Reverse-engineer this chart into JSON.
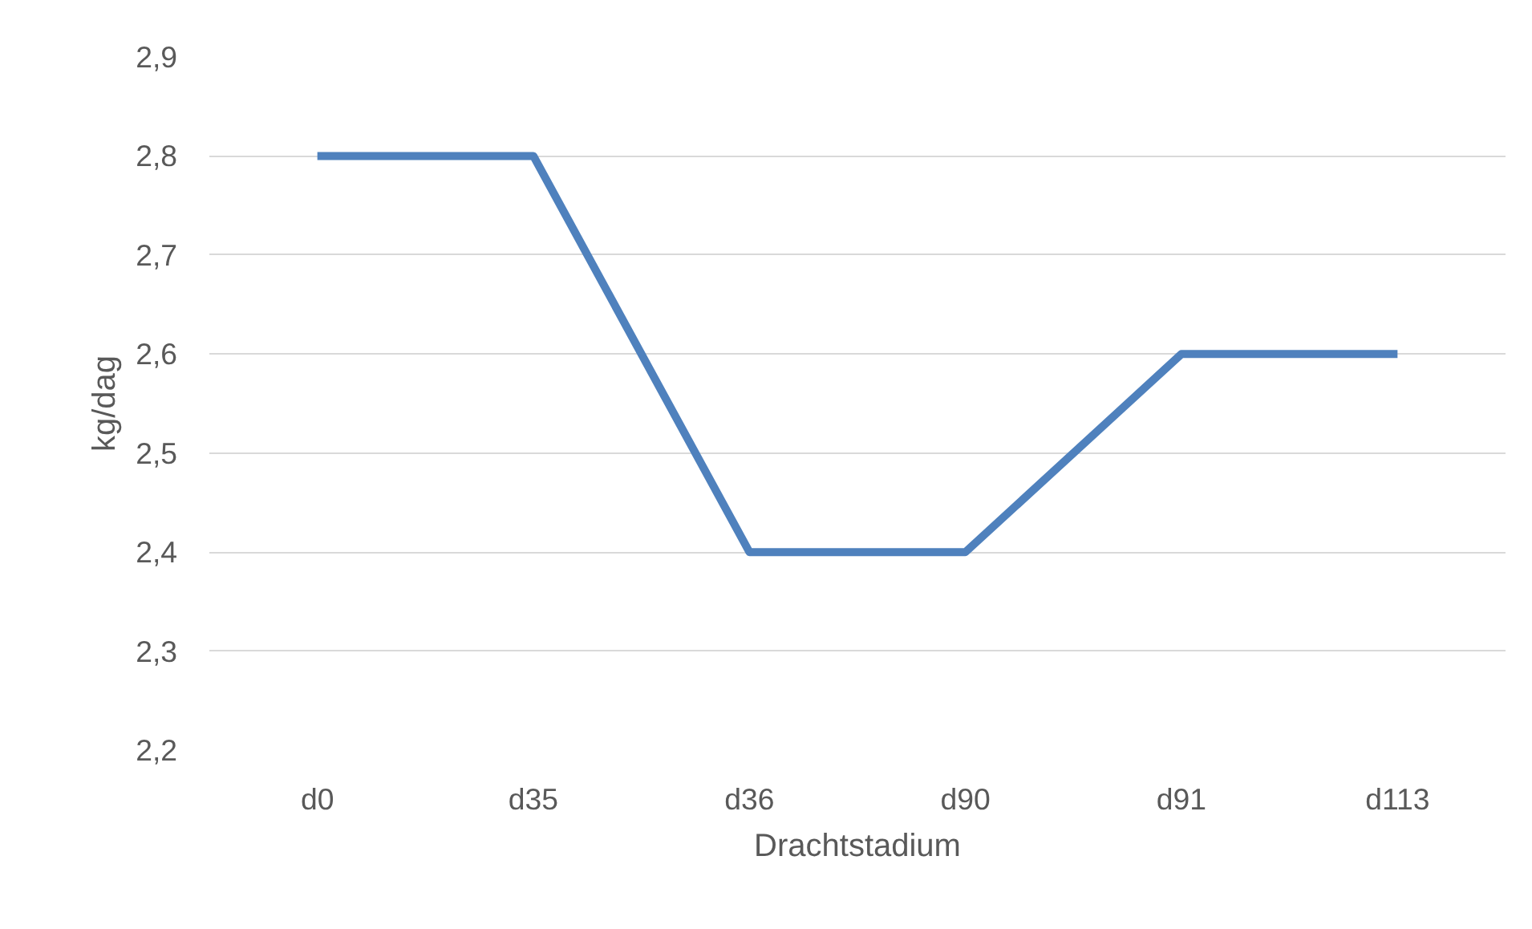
{
  "chart_data": {
    "type": "line",
    "xlabel": "Drachtstadium",
    "ylabel": "kg/dag",
    "categories": [
      "d0",
      "d35",
      "d36",
      "d90",
      "d91",
      "d113"
    ],
    "series": [
      {
        "color": "#4f81bd",
        "values": [
          2.8,
          2.8,
          2.4,
          2.4,
          2.6,
          2.6
        ]
      }
    ],
    "ylim": [
      2.2,
      2.9
    ],
    "yticks": [
      {
        "value": 2.2,
        "label": "2,2"
      },
      {
        "value": 2.3,
        "label": "2,3"
      },
      {
        "value": 2.4,
        "label": "2,4"
      },
      {
        "value": 2.5,
        "label": "2,5"
      },
      {
        "value": 2.6,
        "label": "2,6"
      },
      {
        "value": 2.7,
        "label": "2,7"
      },
      {
        "value": 2.8,
        "label": "2,8"
      },
      {
        "value": 2.9,
        "label": "2,9"
      }
    ],
    "grid": "y",
    "marker": "none",
    "line_style": "solid"
  }
}
